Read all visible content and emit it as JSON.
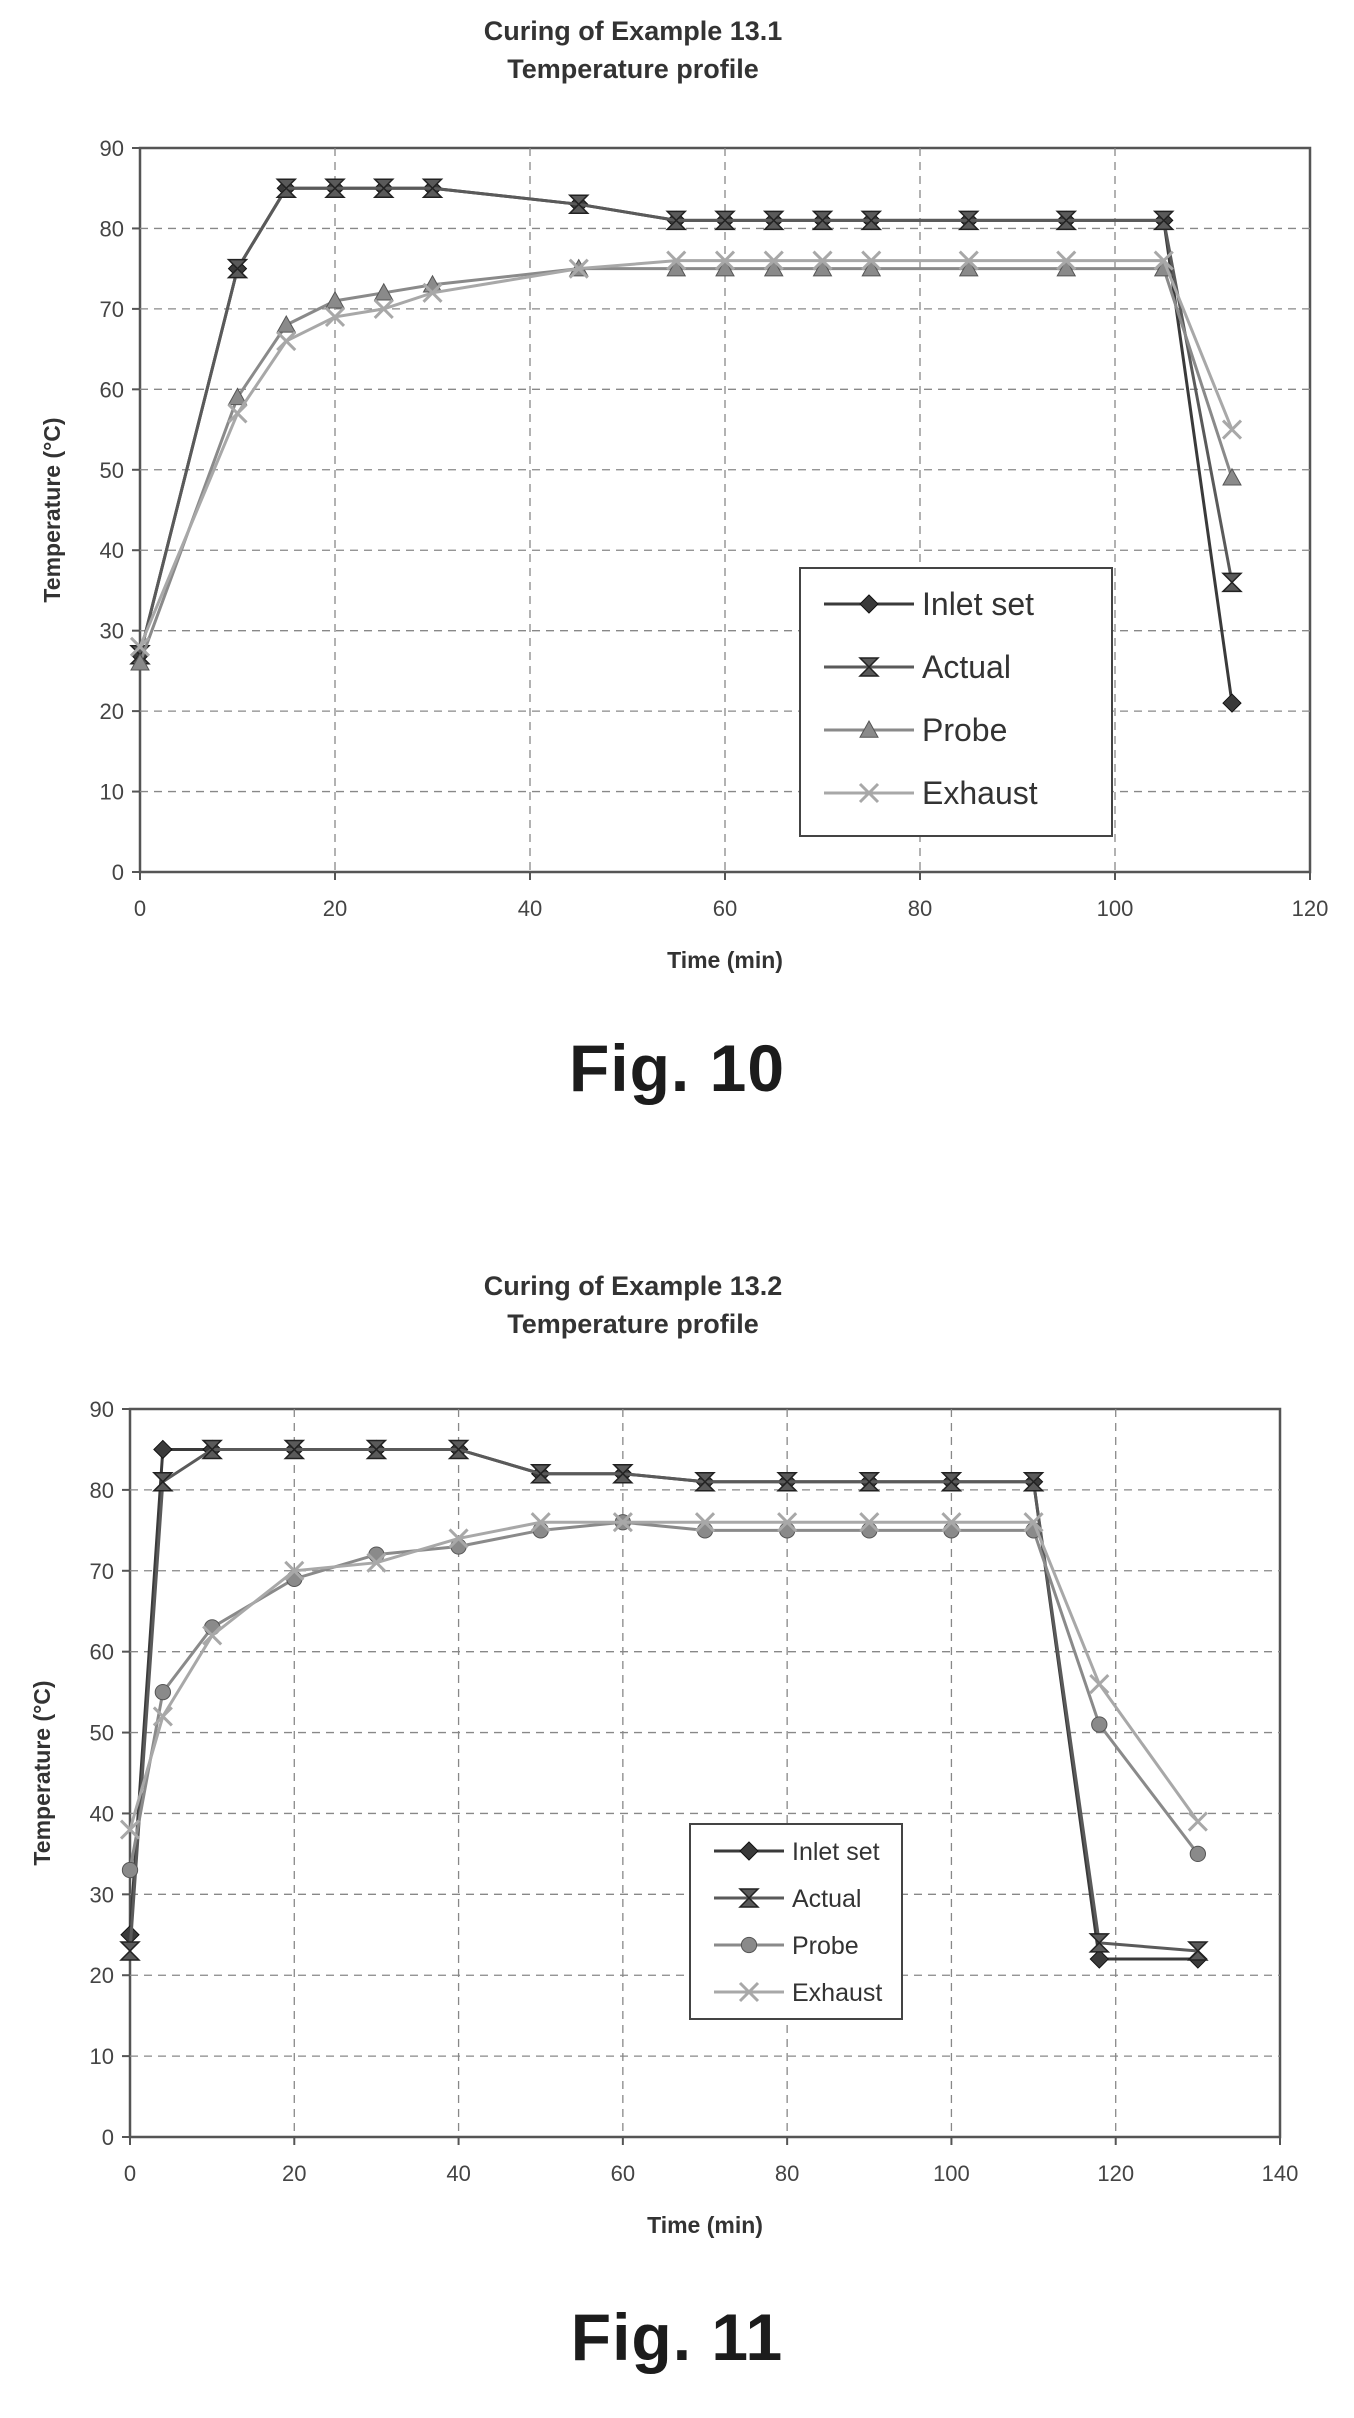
{
  "figures": [
    {
      "caption": "Fig. 10",
      "chart_data": {
        "type": "line",
        "title": "Curing of Example 13.1",
        "subtitle": "Temperature profile",
        "xlabel": "Time (min)",
        "ylabel": "Temperature (°C)",
        "xlim": [
          0,
          120
        ],
        "ylim": [
          0,
          90
        ],
        "xticks": [
          0,
          20,
          40,
          60,
          80,
          100,
          120
        ],
        "yticks": [
          0,
          10,
          20,
          30,
          40,
          50,
          60,
          70,
          80,
          90
        ],
        "grid": true,
        "legend_position": "bottom-right",
        "series": [
          {
            "name": "Inlet set",
            "marker": "diamond",
            "color": "#3a3a3a",
            "x": [
              0,
              10,
              15,
              20,
              25,
              30,
              45,
              55,
              60,
              65,
              70,
              75,
              85,
              95,
              105,
              112
            ],
            "y": [
              27,
              75,
              85,
              85,
              85,
              85,
              83,
              81,
              81,
              81,
              81,
              81,
              81,
              81,
              81,
              21
            ]
          },
          {
            "name": "Actual",
            "marker": "hourglass",
            "color": "#5a5a5a",
            "x": [
              0,
              10,
              15,
              20,
              25,
              30,
              45,
              55,
              60,
              65,
              70,
              75,
              85,
              95,
              105,
              112
            ],
            "y": [
              27,
              75,
              85,
              85,
              85,
              85,
              83,
              81,
              81,
              81,
              81,
              81,
              81,
              81,
              81,
              36
            ]
          },
          {
            "name": "Probe",
            "marker": "triangle",
            "color": "#8a8a8a",
            "x": [
              0,
              10,
              15,
              20,
              25,
              30,
              45,
              55,
              60,
              65,
              70,
              75,
              85,
              95,
              105,
              112
            ],
            "y": [
              26,
              59,
              68,
              71,
              72,
              73,
              75,
              75,
              75,
              75,
              75,
              75,
              75,
              75,
              75,
              49
            ]
          },
          {
            "name": "Exhaust",
            "marker": "x",
            "color": "#a8a8a8",
            "x": [
              0,
              10,
              15,
              20,
              25,
              30,
              45,
              55,
              60,
              65,
              70,
              75,
              85,
              95,
              105,
              112
            ],
            "y": [
              28,
              57,
              66,
              69,
              70,
              72,
              75,
              76,
              76,
              76,
              76,
              76,
              76,
              76,
              76,
              55
            ]
          }
        ]
      }
    },
    {
      "caption": "Fig. 11",
      "chart_data": {
        "type": "line",
        "title": "Curing of Example 13.2",
        "subtitle": "Temperature profile",
        "xlabel": "Time (min)",
        "ylabel": "Temperature (°C)",
        "xlim": [
          0,
          140
        ],
        "ylim": [
          0,
          90
        ],
        "xticks": [
          0,
          20,
          40,
          60,
          80,
          100,
          120,
          140
        ],
        "yticks": [
          0,
          10,
          20,
          30,
          40,
          50,
          60,
          70,
          80,
          90
        ],
        "grid": true,
        "legend_position": "center",
        "series": [
          {
            "name": "Inlet set",
            "marker": "diamond",
            "color": "#3a3a3a",
            "x": [
              0,
              4,
              10,
              20,
              30,
              40,
              50,
              60,
              70,
              80,
              90,
              100,
              110,
              118,
              130
            ],
            "y": [
              25,
              85,
              85,
              85,
              85,
              85,
              82,
              82,
              81,
              81,
              81,
              81,
              81,
              22,
              22
            ]
          },
          {
            "name": "Actual",
            "marker": "hourglass",
            "color": "#5a5a5a",
            "x": [
              0,
              4,
              10,
              20,
              30,
              40,
              50,
              60,
              70,
              80,
              90,
              100,
              110,
              118,
              130
            ],
            "y": [
              23,
              81,
              85,
              85,
              85,
              85,
              82,
              82,
              81,
              81,
              81,
              81,
              81,
              24,
              23
            ]
          },
          {
            "name": "Probe",
            "marker": "circle",
            "color": "#8a8a8a",
            "x": [
              0,
              4,
              10,
              20,
              30,
              40,
              50,
              60,
              70,
              80,
              90,
              100,
              110,
              118,
              130
            ],
            "y": [
              33,
              55,
              63,
              69,
              72,
              73,
              75,
              76,
              75,
              75,
              75,
              75,
              75,
              51,
              35
            ]
          },
          {
            "name": "Exhaust",
            "marker": "x",
            "color": "#a8a8a8",
            "x": [
              0,
              4,
              10,
              20,
              30,
              40,
              50,
              60,
              70,
              80,
              90,
              100,
              110,
              118,
              130
            ],
            "y": [
              38,
              52,
              62,
              70,
              71,
              74,
              76,
              76,
              76,
              76,
              76,
              76,
              76,
              56,
              39
            ]
          }
        ]
      }
    }
  ]
}
